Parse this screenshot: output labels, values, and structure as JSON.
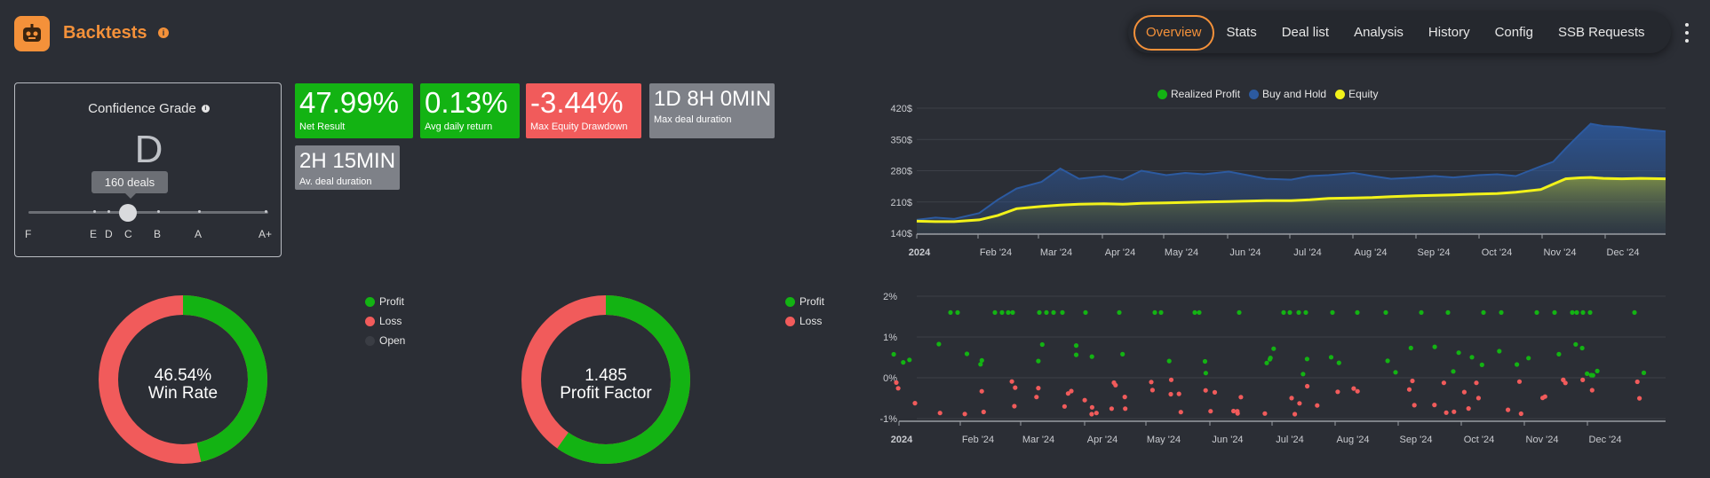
{
  "header": {
    "title": "Backtests",
    "info_icon": "info-icon",
    "logo_icon": "robot-icon",
    "accent": "#f4913a",
    "tabs": [
      {
        "label": "Overview",
        "active": true
      },
      {
        "label": "Stats",
        "active": false
      },
      {
        "label": "Deal list",
        "active": false
      },
      {
        "label": "Analysis",
        "active": false
      },
      {
        "label": "History",
        "active": false
      },
      {
        "label": "Config",
        "active": false
      },
      {
        "label": "SSB Requests",
        "active": false
      }
    ],
    "more_icon": "kebab-menu-icon"
  },
  "confidence": {
    "title": "Confidence Grade",
    "grade": "D",
    "deals_tooltip": "160 deals",
    "scale_labels": [
      "F",
      "E",
      "D",
      "C",
      "B",
      "A",
      "A+"
    ]
  },
  "kpis": [
    {
      "value": "47.99%",
      "label": "Net Result",
      "color": "#13b313"
    },
    {
      "value": "0.13%",
      "label": "Avg daily return",
      "color": "#13b313"
    },
    {
      "value": "-3.44%",
      "label": "Max Equity Drawdown",
      "color": "#f15b5b"
    },
    {
      "value": "1D 8H 0MIN",
      "label": "Max deal duration",
      "color": "#7e8188"
    },
    {
      "value": "2H 15MIN",
      "label": "Av. deal duration",
      "color": "#7e8188"
    }
  ],
  "win_rate": {
    "center_value": "46.54%",
    "center_label": "Win Rate",
    "profit_fraction": 0.4654,
    "legend": [
      {
        "label": "Profit",
        "color": "#13b313"
      },
      {
        "label": "Loss",
        "color": "#f15b5b"
      },
      {
        "label": "Open",
        "color": "#3a3d44"
      }
    ]
  },
  "profit_factor": {
    "center_value": "1.485",
    "center_label": "Profit Factor",
    "profit_fraction": 0.5976,
    "legend": [
      {
        "label": "Profit",
        "color": "#13b313"
      },
      {
        "label": "Loss",
        "color": "#f15b5b"
      }
    ]
  },
  "chart_data": [
    {
      "type": "area",
      "legend": [
        {
          "name": "Realized Profit",
          "color": "#13b313"
        },
        {
          "name": "Buy and Hold",
          "color": "#2c5aa0"
        },
        {
          "name": "Equity",
          "color": "#f2f21a"
        }
      ],
      "x_ticks": [
        "2024",
        "Feb '24",
        "Mar '24",
        "Apr '24",
        "May '24",
        "Jun '24",
        "Jul '24",
        "Aug '24",
        "Sep '24",
        "Oct '24",
        "Nov '24",
        "Dec '24"
      ],
      "y_ticks": [
        "140$",
        "210$",
        "280$",
        "350$",
        "420$"
      ],
      "ylim": [
        140,
        420
      ],
      "series": [
        {
          "name": "Buy and Hold",
          "x": [
            0,
            0.3,
            0.6,
            1.0,
            1.3,
            1.6,
            2.0,
            2.3,
            2.6,
            3.0,
            3.3,
            3.6,
            4.0,
            4.3,
            4.6,
            5.0,
            5.3,
            5.6,
            6.0,
            6.3,
            6.6,
            7.0,
            7.3,
            7.6,
            8.0,
            8.3,
            8.6,
            9.0,
            9.3,
            9.6,
            10.0,
            10.2,
            10.4,
            10.6,
            10.8,
            11.0,
            11.3,
            11.6,
            12.0
          ],
          "values": [
            170,
            175,
            172,
            185,
            215,
            240,
            255,
            285,
            262,
            268,
            260,
            280,
            270,
            275,
            272,
            278,
            270,
            262,
            260,
            268,
            270,
            275,
            268,
            262,
            265,
            268,
            265,
            270,
            272,
            268,
            290,
            300,
            330,
            358,
            385,
            380,
            378,
            373,
            368
          ]
        },
        {
          "name": "Equity",
          "x": [
            0,
            0.3,
            0.6,
            1.0,
            1.3,
            1.6,
            2.0,
            2.3,
            2.6,
            3.0,
            3.3,
            3.6,
            4.0,
            4.3,
            4.6,
            5.0,
            5.3,
            5.6,
            6.0,
            6.3,
            6.6,
            7.0,
            7.3,
            7.6,
            8.0,
            8.3,
            8.6,
            9.0,
            9.3,
            9.6,
            10.0,
            10.2,
            10.4,
            10.6,
            10.8,
            11.0,
            11.3,
            11.6,
            12.0
          ],
          "values": [
            167,
            166,
            166,
            170,
            180,
            195,
            200,
            203,
            205,
            206,
            205,
            207,
            208,
            209,
            210,
            211,
            212,
            213,
            213,
            215,
            218,
            219,
            220,
            222,
            224,
            225,
            226,
            228,
            229,
            232,
            238,
            250,
            262,
            264,
            265,
            263,
            262,
            263,
            262
          ]
        }
      ]
    },
    {
      "type": "scatter",
      "x_ticks": [
        "2024",
        "Feb '24",
        "Mar '24",
        "Apr '24",
        "May '24",
        "Jun '24",
        "Jul '24",
        "Aug '24",
        "Sep '24",
        "Oct '24",
        "Nov '24",
        "Dec '24"
      ],
      "y_ticks": [
        "-1%",
        "0%",
        "1%",
        "2%"
      ],
      "ylim": [
        -1,
        2
      ],
      "series": [
        {
          "name": "Profit",
          "color": "#13b313"
        },
        {
          "name": "Loss",
          "color": "#f15b5b"
        }
      ]
    }
  ]
}
